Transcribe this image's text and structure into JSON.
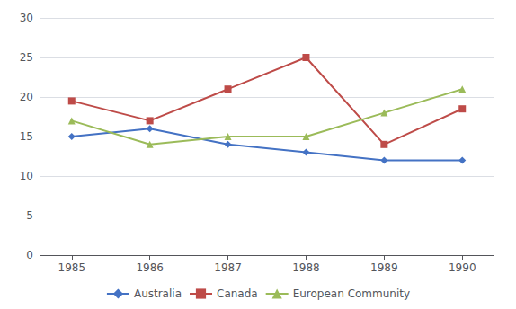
{
  "chart_data": {
    "type": "line",
    "x": [
      1985,
      1986,
      1987,
      1988,
      1989,
      1990
    ],
    "xlim": [
      1984.6,
      1990.4
    ],
    "xticks": [
      1985,
      1986,
      1987,
      1988,
      1989,
      1990
    ],
    "ylim": [
      0,
      30
    ],
    "yticks": [
      0,
      5,
      10,
      15,
      20,
      25,
      30
    ],
    "grid": true,
    "legend": "bottom",
    "series": [
      {
        "name": "Australia",
        "color": "#4472C4",
        "marker": "diamond",
        "values": [
          15,
          16,
          14,
          13,
          12,
          12
        ]
      },
      {
        "name": "Canada",
        "color": "#BE4B48",
        "marker": "square",
        "values": [
          19.5,
          17,
          21,
          25,
          14,
          18.5
        ]
      },
      {
        "name": "European Community",
        "color": "#9BBB59",
        "marker": "triangle",
        "values": [
          17,
          14,
          15,
          15,
          18,
          21
        ]
      }
    ]
  }
}
